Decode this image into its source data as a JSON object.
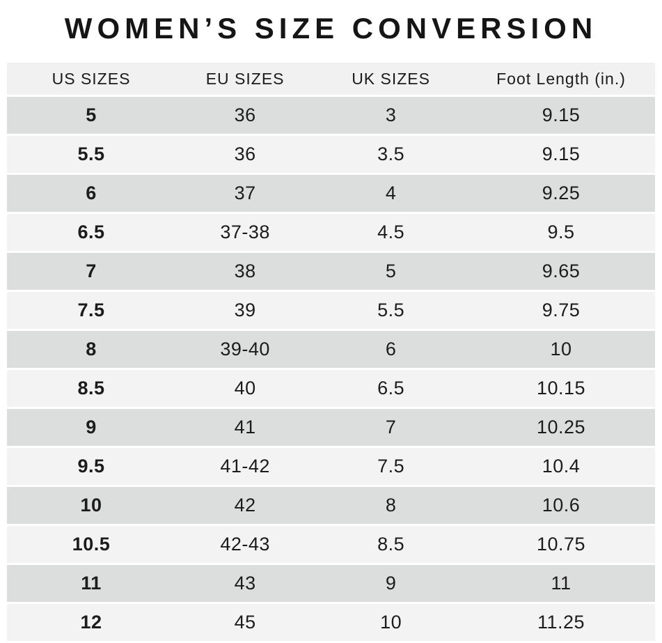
{
  "title": "WOMEN’S SIZE CONVERSION",
  "colors": {
    "page_bg": "#ffffff",
    "header_bg": "#f1f1f2",
    "row_dark": "#dcdddd",
    "row_light": "#f3f3f4",
    "text": "#1c1c1c"
  },
  "table": {
    "headers": [
      "US SIZES",
      "EU SIZES",
      "UK SIZES",
      "Foot Length (in.)"
    ],
    "rows": [
      {
        "us": "5",
        "eu": "36",
        "uk": "3",
        "foot": "9.15"
      },
      {
        "us": "5.5",
        "eu": "36",
        "uk": "3.5",
        "foot": "9.15"
      },
      {
        "us": "6",
        "eu": "37",
        "uk": "4",
        "foot": "9.25"
      },
      {
        "us": "6.5",
        "eu": "37-38",
        "uk": "4.5",
        "foot": "9.5"
      },
      {
        "us": "7",
        "eu": "38",
        "uk": "5",
        "foot": "9.65"
      },
      {
        "us": "7.5",
        "eu": "39",
        "uk": "5.5",
        "foot": "9.75"
      },
      {
        "us": "8",
        "eu": "39-40",
        "uk": "6",
        "foot": "10"
      },
      {
        "us": "8.5",
        "eu": "40",
        "uk": "6.5",
        "foot": "10.15"
      },
      {
        "us": "9",
        "eu": "41",
        "uk": "7",
        "foot": "10.25"
      },
      {
        "us": "9.5",
        "eu": "41-42",
        "uk": "7.5",
        "foot": "10.4"
      },
      {
        "us": "10",
        "eu": "42",
        "uk": "8",
        "foot": "10.6"
      },
      {
        "us": "10.5",
        "eu": "42-43",
        "uk": "8.5",
        "foot": "10.75"
      },
      {
        "us": "11",
        "eu": "43",
        "uk": "9",
        "foot": "11"
      },
      {
        "us": "12",
        "eu": "45",
        "uk": "10",
        "foot": "11.25"
      }
    ]
  }
}
